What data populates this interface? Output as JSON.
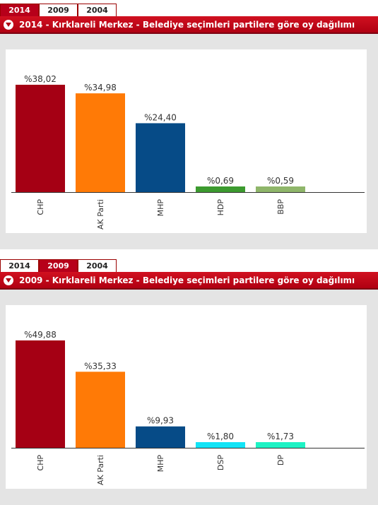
{
  "chart_data": [
    {
      "type": "bar",
      "tabs": [
        "2014",
        "2009",
        "2004"
      ],
      "active_tab": 0,
      "title": "2014 - Kırklareli Merkez - Belediye seçimleri partilere göre oy dağılımı",
      "categories": [
        "CHP",
        "AK Parti",
        "MHP",
        "HDP",
        "BBP"
      ],
      "values": [
        38.02,
        34.98,
        24.4,
        0.69,
        0.59
      ],
      "labels": [
        "%38,02",
        "%34,98",
        "%24,40",
        "%0,69",
        "%0,59"
      ],
      "colors": [
        "#a50014",
        "#ff7a06",
        "#064b87",
        "#3c9a2f",
        "#8fb66a"
      ],
      "ymax": 38.02,
      "grid": false
    },
    {
      "type": "bar",
      "tabs": [
        "2014",
        "2009",
        "2004"
      ],
      "active_tab": 1,
      "title": "2009 - Kırklareli Merkez - Belediye seçimleri partilere göre oy dağılımı",
      "categories": [
        "CHP",
        "AK Parti",
        "MHP",
        "DSP",
        "DP"
      ],
      "values": [
        49.88,
        35.33,
        9.93,
        1.8,
        1.73
      ],
      "labels": [
        "%49,88",
        "%35,33",
        "%9,93",
        "%1,80",
        "%1,73"
      ],
      "colors": [
        "#a50014",
        "#ff7a06",
        "#064b87",
        "#12e4f6",
        "#1ef2c4"
      ],
      "ymax": 49.88,
      "grid": false
    }
  ]
}
